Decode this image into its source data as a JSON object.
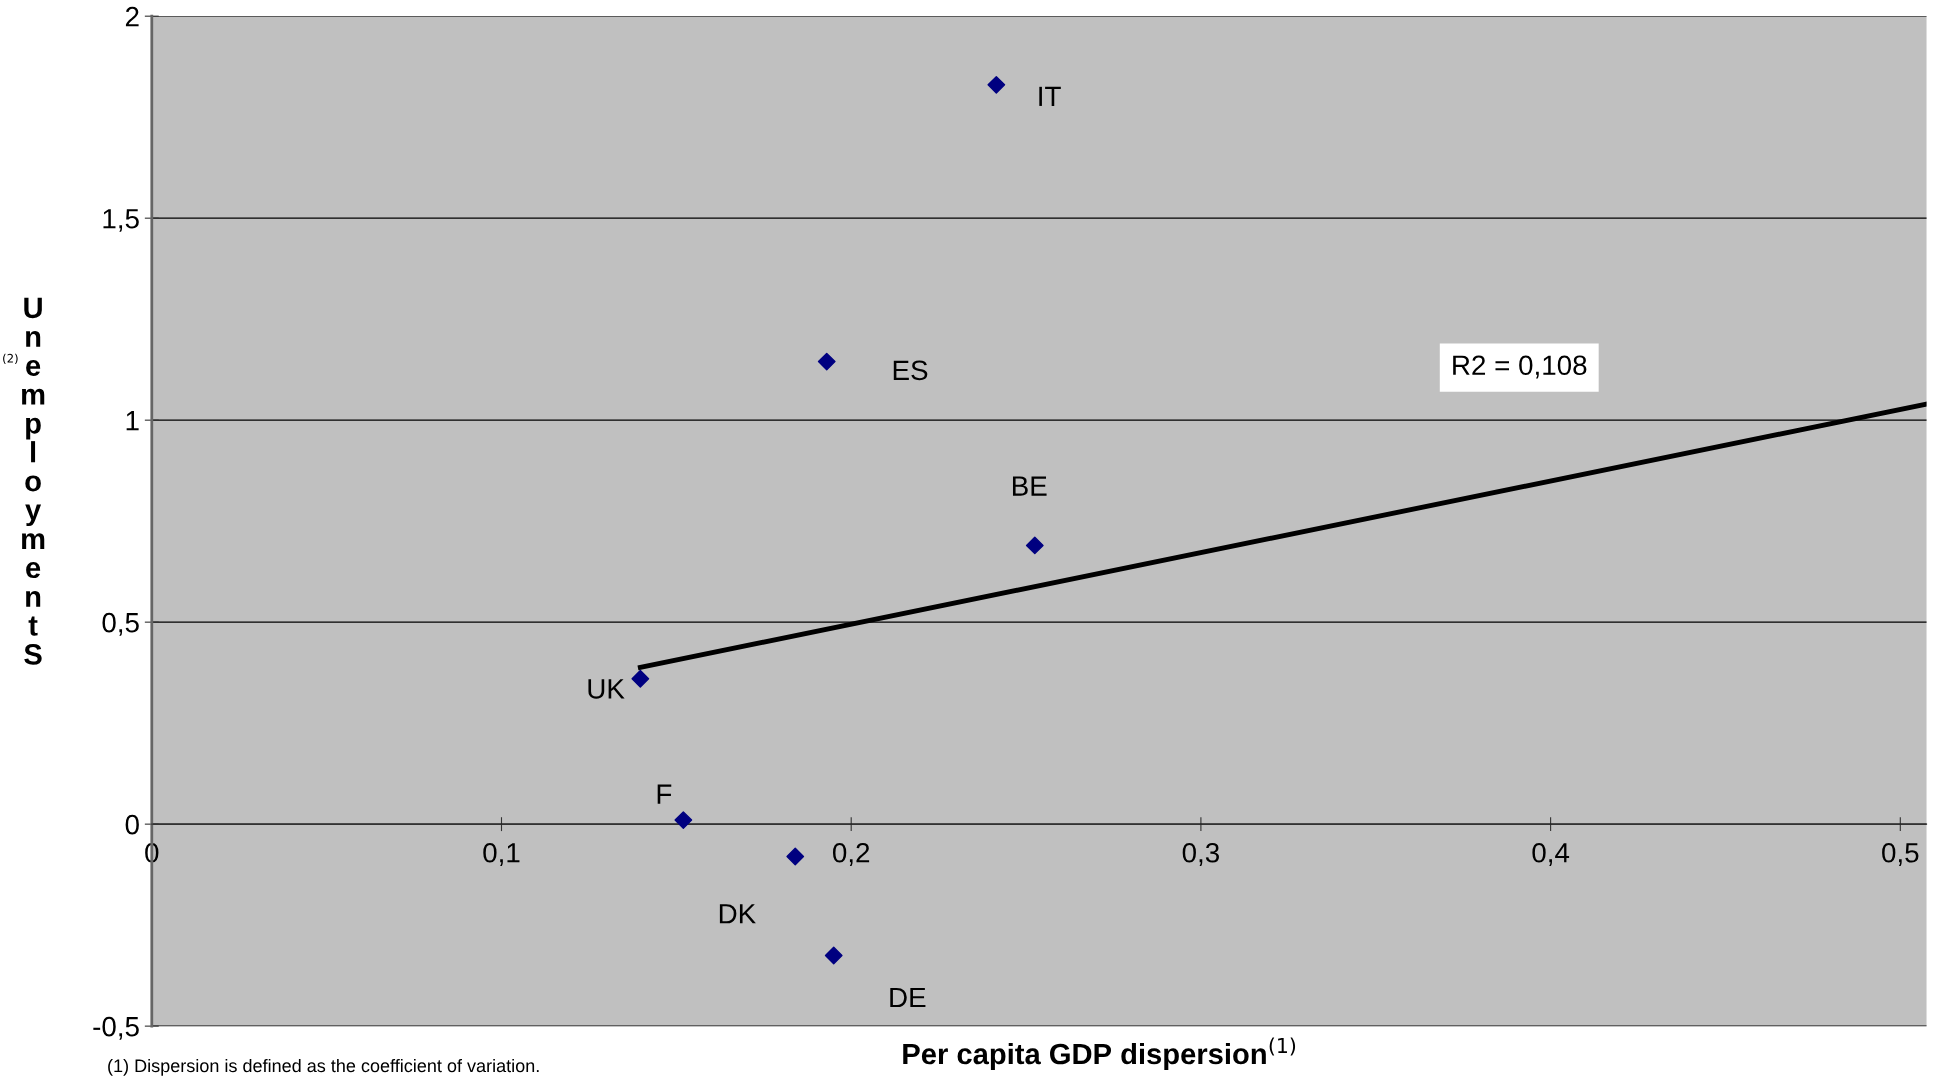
{
  "chart_data": {
    "type": "scatter",
    "xlabel": "Per capita GDP dispersion$^{(1)}$",
    "ylabel": "Unemployment S$^{(2)}$",
    "x": [
      0.2415,
      0.193,
      0.2525,
      0.1397,
      0.152,
      0.184,
      0.195
    ],
    "series": [
      {
        "color": "#000080",
        "marker": "diamond",
        "values": [
          1.83,
          1.145,
          0.69,
          0.36,
          0.01,
          -0.08,
          -0.325
        ]
      },
      {
        "type": "line",
        "color": "#000000",
        "marker": "none",
        "x": [
          0.1397,
          0.5075
        ],
        "values": [
          0.388,
          1.04
        ]
      }
    ],
    "xlim": [
      0,
      0.5075
    ],
    "xticks": [
      0,
      {
        "value": 0.1,
        "label": "0,1"
      },
      {
        "value": 0.2,
        "label": "0,2"
      },
      {
        "value": 0.3,
        "label": "0,3"
      },
      {
        "value": 0.4,
        "label": "0,4"
      },
      {
        "value": 0.5,
        "label": "0,5"
      }
    ],
    "ylim": [
      -0.5,
      2
    ],
    "yticks": [
      {
        "value": -0.5,
        "label": "-0,5"
      },
      0,
      {
        "value": 0.5,
        "label": "0,5"
      },
      1,
      {
        "value": 1.5,
        "label": "1,5"
      },
      2
    ],
    "grid": "y",
    "annotations": [
      {
        "text": "IT",
        "x": 0.2415,
        "y": 1.83
      },
      {
        "text": "ES",
        "x": 0.193,
        "y": 1.145
      },
      {
        "text": "BE",
        "x": 0.2525,
        "y": 0.69
      },
      {
        "text": "UK",
        "x": 0.1397,
        "y": 0.36
      },
      {
        "text": "F",
        "x": 0.152,
        "y": 0.01
      },
      {
        "text": "DK",
        "x": 0.184,
        "y": -0.08
      },
      {
        "text": "DE",
        "x": 0.195,
        "y": -0.325
      },
      "R2 = 0,108",
      "(1) Dispersion is defined as the coefficient of variation."
    ]
  }
}
